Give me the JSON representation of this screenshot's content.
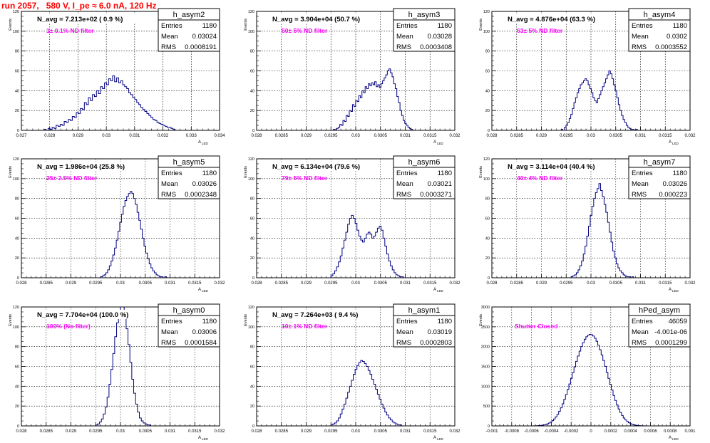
{
  "run_title": "run 2057,   580 V, I_pe ≈ 6.0 nA, 120 Hz",
  "colors": {
    "title": "#ff0000",
    "annotation": "#ff00ff",
    "histogram": "#00007f",
    "grid": "#000000"
  },
  "chart_data": [
    {
      "type": "histogram",
      "name": "h_asym2",
      "stats": {
        "entries_label": "Entries",
        "entries": "1180",
        "mean_label": "Mean",
        "mean": "0.03024",
        "rms_label": "RMS",
        "rms": "0.0008191"
      },
      "n_avg": "N_avg = 7.213e+02 ( 0.9 %)",
      "filter": "1± 0.1% ND filter",
      "xlim": [
        0.027,
        0.034
      ],
      "ylim": [
        0,
        120
      ],
      "xticks": [
        "0.027",
        "0.028",
        "0.029",
        "0.03",
        "0.031",
        "0.032",
        "0.033",
        "0.034"
      ],
      "yticks": [
        "0",
        "20",
        "40",
        "60",
        "80",
        "100",
        "120"
      ],
      "ylabel": "Events",
      "xlabel": "A",
      "xlabel_sub": "LED",
      "xmin": 0.0278,
      "xmax": 0.0325,
      "values": [
        1,
        0,
        2,
        1,
        3,
        2,
        5,
        4,
        6,
        5,
        9,
        8,
        11,
        10,
        14,
        13,
        18,
        17,
        22,
        21,
        28,
        26,
        33,
        30,
        36,
        34,
        40,
        37,
        44,
        42,
        48,
        46,
        52,
        50,
        55,
        49,
        53,
        48,
        50,
        46,
        44,
        42,
        38,
        36,
        33,
        31,
        28,
        26,
        23,
        21,
        19,
        17,
        15,
        13,
        11,
        10,
        8,
        7,
        6,
        5,
        4,
        3,
        3,
        2,
        1,
        0
      ]
    },
    {
      "type": "histogram",
      "name": "h_asym3",
      "stats": {
        "entries_label": "Entries",
        "entries": "1180",
        "mean_label": "Mean",
        "mean": "0.03028",
        "rms_label": "RMS",
        "rms": "0.0003408"
      },
      "n_avg": "N_avg = 3.904e+04 (50.7 %)",
      "filter": "50± 5% ND filter",
      "xlim": [
        0.028,
        0.032
      ],
      "ylim": [
        0,
        120
      ],
      "xticks": [
        "0.028",
        "0.0285",
        "0.029",
        "0.0295",
        "0.03",
        "0.0305",
        "0.031",
        "0.0315",
        "0.032"
      ],
      "yticks": [
        "0",
        "20",
        "40",
        "60",
        "80",
        "100",
        "120"
      ],
      "ylabel": "Events",
      "xlabel": "A",
      "xlabel_sub": "LED",
      "xmin": 0.02955,
      "xmax": 0.03115,
      "values": [
        1,
        0,
        2,
        3,
        6,
        5,
        10,
        9,
        15,
        14,
        20,
        19,
        26,
        24,
        30,
        29,
        35,
        33,
        40,
        38,
        44,
        42,
        47,
        45,
        48,
        46,
        49,
        44,
        46,
        43,
        47,
        50,
        53,
        56,
        60,
        62,
        58,
        54,
        47,
        42,
        34,
        28,
        20,
        15,
        10,
        7,
        5,
        3,
        2,
        1
      ]
    },
    {
      "type": "histogram",
      "name": "h_asym4",
      "stats": {
        "entries_label": "Entries",
        "entries": "1180",
        "mean_label": "Mean",
        "mean": "0.0302",
        "rms_label": "RMS",
        "rms": "0.0003552"
      },
      "n_avg": "N_avg = 4.876e+04 (63.3 %)",
      "filter": "63± 5% ND filter",
      "xlim": [
        0.028,
        0.032
      ],
      "ylim": [
        0,
        120
      ],
      "xticks": [
        "0.028",
        "0.0285",
        "0.029",
        "0.0295",
        "0.03",
        "0.0305",
        "0.031",
        "0.0315",
        "0.032"
      ],
      "yticks": [
        "0",
        "20",
        "40",
        "60",
        "80",
        "100",
        "120"
      ],
      "ylabel": "Events",
      "xlabel": "A",
      "xlabel_sub": "LED",
      "xmin": 0.0294,
      "xmax": 0.031,
      "values": [
        1,
        0,
        3,
        5,
        8,
        12,
        16,
        22,
        28,
        33,
        38,
        42,
        46,
        48,
        50,
        52,
        50,
        46,
        42,
        38,
        33,
        30,
        28,
        32,
        36,
        40,
        44,
        48,
        52,
        56,
        60,
        57,
        52,
        46,
        40,
        33,
        26,
        20,
        15,
        11,
        8,
        5,
        3,
        2,
        1,
        1,
        0,
        1,
        0,
        0
      ]
    },
    {
      "type": "histogram",
      "name": "h_asym5",
      "stats": {
        "entries_label": "Entries",
        "entries": "1180",
        "mean_label": "Mean",
        "mean": "0.03026",
        "rms_label": "RMS",
        "rms": "0.0002348"
      },
      "n_avg": "N_avg = 1.986e+04 (25.8 %)",
      "filter": "25± 2.5% ND filter",
      "xlim": [
        0.028,
        0.032
      ],
      "ylim": [
        0,
        120
      ],
      "xticks": [
        "0.028",
        "0.0285",
        "0.029",
        "0.0295",
        "0.03",
        "0.0305",
        "0.031",
        "0.0315",
        "0.032"
      ],
      "yticks": [
        "0",
        "20",
        "40",
        "60",
        "80",
        "100",
        "120"
      ],
      "ylabel": "Events",
      "xlabel": "A",
      "xlabel_sub": "LED",
      "xmin": 0.0296,
      "xmax": 0.031,
      "values": [
        1,
        2,
        3,
        5,
        8,
        12,
        17,
        23,
        30,
        38,
        47,
        56,
        64,
        72,
        78,
        82,
        85,
        87,
        85,
        80,
        74,
        66,
        58,
        49,
        40,
        32,
        25,
        19,
        14,
        10,
        7,
        5,
        3,
        2,
        1,
        1,
        0,
        1,
        0,
        0
      ]
    },
    {
      "type": "histogram",
      "name": "h_asym6",
      "stats": {
        "entries_label": "Entries",
        "entries": "1180",
        "mean_label": "Mean",
        "mean": "0.03021",
        "rms_label": "RMS",
        "rms": "0.0003271"
      },
      "n_avg": "N_avg = 6.134e+04 (79.6 %)",
      "filter": "79± 5% ND filter",
      "xlim": [
        0.028,
        0.032
      ],
      "ylim": [
        0,
        120
      ],
      "xticks": [
        "0.028",
        "0.0285",
        "0.029",
        "0.0295",
        "0.03",
        "0.0305",
        "0.031",
        "0.0315",
        "0.032"
      ],
      "yticks": [
        "0",
        "20",
        "40",
        "60",
        "80",
        "100",
        "120"
      ],
      "ylabel": "Events",
      "xlabel": "A",
      "xlabel_sub": "LED",
      "xmin": 0.0295,
      "xmax": 0.031,
      "values": [
        2,
        4,
        7,
        11,
        16,
        22,
        30,
        38,
        46,
        54,
        60,
        63,
        60,
        55,
        48,
        42,
        38,
        36,
        40,
        44,
        46,
        44,
        40,
        42,
        46,
        50,
        52,
        48,
        40,
        32,
        24,
        17,
        12,
        8,
        5,
        3,
        2,
        1,
        1,
        0
      ]
    },
    {
      "type": "histogram",
      "name": "h_asym7",
      "stats": {
        "entries_label": "Entries",
        "entries": "1180",
        "mean_label": "Mean",
        "mean": "0.03026",
        "rms_label": "RMS",
        "rms": "0.000223"
      },
      "n_avg": "N_avg = 3.114e+04 (40.4 %)",
      "filter": "40± 4% ND filter",
      "xlim": [
        0.028,
        0.032
      ],
      "ylim": [
        0,
        120
      ],
      "xticks": [
        "0.028",
        "0.0285",
        "0.029",
        "0.0295",
        "0.03",
        "0.0305",
        "0.031",
        "0.0315",
        "0.032"
      ],
      "yticks": [
        "0",
        "20",
        "40",
        "60",
        "80",
        "100",
        "120"
      ],
      "ylabel": "Events",
      "xlabel": "A",
      "xlabel_sub": "LED",
      "xmin": 0.0296,
      "xmax": 0.031,
      "values": [
        1,
        2,
        3,
        5,
        8,
        12,
        17,
        24,
        32,
        42,
        52,
        63,
        72,
        80,
        86,
        90,
        95,
        88,
        82,
        74,
        66,
        56,
        46,
        36,
        27,
        20,
        14,
        10,
        7,
        5,
        3,
        2,
        1,
        1,
        0,
        1,
        0,
        0,
        0,
        0
      ]
    },
    {
      "type": "histogram",
      "name": "h_asym0",
      "stats": {
        "entries_label": "Entries",
        "entries": "1180",
        "mean_label": "Mean",
        "mean": "0.03006",
        "rms_label": "RMS",
        "rms": "0.0001584"
      },
      "n_avg": "N_avg = 7.704e+04 (100.0 %)",
      "filter": "100% (No filter)",
      "xlim": [
        0.028,
        0.032
      ],
      "ylim": [
        0,
        120
      ],
      "xticks": [
        "0.028",
        "0.0285",
        "0.029",
        "0.0295",
        "0.03",
        "0.0305",
        "0.031",
        "0.0315",
        "0.032"
      ],
      "yticks": [
        "0",
        "20",
        "40",
        "60",
        "80",
        "100",
        "120"
      ],
      "ylabel": "Events",
      "xlabel": "A",
      "xlabel_sub": "LED",
      "xmin": 0.0295,
      "xmax": 0.03065,
      "values": [
        1,
        2,
        4,
        7,
        12,
        19,
        29,
        42,
        57,
        73,
        90,
        104,
        116,
        120,
        120,
        112,
        98,
        82,
        64,
        47,
        33,
        22,
        14,
        8,
        5,
        3,
        2,
        1,
        1,
        0
      ]
    },
    {
      "type": "histogram",
      "name": "h_asym1",
      "stats": {
        "entries_label": "Entries",
        "entries": "1180",
        "mean_label": "Mean",
        "mean": "0.03019",
        "rms_label": "RMS",
        "rms": "0.0002803"
      },
      "n_avg": "N_avg = 7.264e+03 ( 9.4 %)",
      "filter": "10± 1% ND filter",
      "xlim": [
        0.028,
        0.032
      ],
      "ylim": [
        0,
        120
      ],
      "xticks": [
        "0.028",
        "0.0285",
        "0.029",
        "0.0295",
        "0.03",
        "0.0305",
        "0.031",
        "0.0315",
        "0.032"
      ],
      "yticks": [
        "0",
        "20",
        "40",
        "60",
        "80",
        "100",
        "120"
      ],
      "ylabel": "Events",
      "xlabel": "A",
      "xlabel_sub": "LED",
      "xmin": 0.0295,
      "xmax": 0.031,
      "values": [
        1,
        2,
        3,
        5,
        8,
        12,
        17,
        22,
        28,
        34,
        40,
        46,
        52,
        57,
        61,
        64,
        66,
        65,
        63,
        60,
        56,
        52,
        47,
        42,
        37,
        32,
        27,
        22,
        18,
        14,
        11,
        8,
        6,
        4,
        3,
        2,
        1,
        1,
        0,
        0
      ]
    },
    {
      "type": "histogram",
      "name": "hPed_asym",
      "stats": {
        "entries_label": "Entries",
        "entries": "46059",
        "mean_label": "Mean",
        "mean": "-4.001e-06",
        "rms_label": "RMS",
        "rms": "0.0001299"
      },
      "n_avg": "",
      "filter": "Shutter Closed",
      "xlim": [
        -0.001,
        0.001
      ],
      "ylim": [
        0,
        3000
      ],
      "xticks": [
        "-0.001",
        "-0.0008",
        "-0.0006",
        "-0.0004",
        "-0.0002",
        "0",
        "0.0002",
        "0.0004",
        "0.0006",
        "0.0008",
        "0.001"
      ],
      "yticks": [
        "0",
        "500",
        "1000",
        "1500",
        "2000",
        "2500",
        "3000"
      ],
      "ylabel": "Events",
      "xlabel": "A",
      "xlabel_sub": "LED",
      "xmin": -0.0006,
      "xmax": 0.0006,
      "values": [
        1,
        2,
        3,
        5,
        8,
        12,
        18,
        26,
        37,
        52,
        72,
        98,
        132,
        175,
        228,
        292,
        368,
        456,
        556,
        668,
        790,
        920,
        1058,
        1200,
        1344,
        1488,
        1628,
        1762,
        1886,
        2000,
        2100,
        2184,
        2248,
        2290,
        2308,
        2300,
        2268,
        2212,
        2134,
        2036,
        1920,
        1790,
        1650,
        1502,
        1350,
        1198,
        1048,
        904,
        768,
        642,
        528,
        426,
        338,
        262,
        200,
        150,
        110,
        79,
        55,
        38,
        26,
        17,
        11,
        7,
        4,
        3,
        2,
        1,
        1,
        0
      ]
    }
  ]
}
